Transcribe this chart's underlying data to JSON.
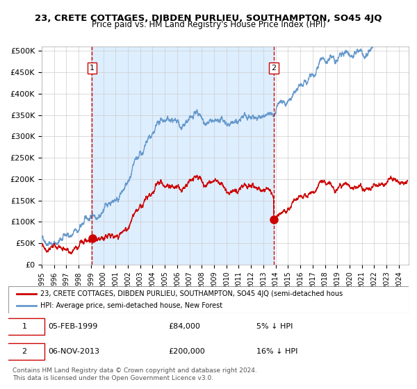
{
  "title": "23, CRETE COTTAGES, DIBDEN PURLIEU, SOUTHAMPTON, SO45 4JQ",
  "subtitle": "Price paid vs. HM Land Registry's House Price Index (HPI)",
  "ylabel": "",
  "sale1_date": 1999.09,
  "sale1_price": 84000,
  "sale1_label": "1",
  "sale1_text": "05-FEB-1999",
  "sale1_pct": "5% ↓ HPI",
  "sale2_date": 2013.84,
  "sale2_price": 200000,
  "sale2_label": "2",
  "sale2_text": "06-NOV-2013",
  "sale2_pct": "16% ↓ HPI",
  "legend1": "23, CRETE COTTAGES, DIBDEN PURLIEU, SOUTHAMPTON, SO45 4JQ (semi-detached hous",
  "legend2": "HPI: Average price, semi-detached house, New Forest",
  "footer1": "Contains HM Land Registry data © Crown copyright and database right 2024.",
  "footer2": "This data is licensed under the Open Government Licence v3.0.",
  "red_color": "#cc0000",
  "blue_color": "#6699cc",
  "bg_shaded": "#ddeeff",
  "vline_color": "#cc0000",
  "yticks": [
    0,
    50000,
    100000,
    150000,
    200000,
    250000,
    300000,
    350000,
    400000,
    450000,
    500000
  ],
  "ylim": [
    0,
    510000
  ],
  "xlim_start": 1995.0,
  "xlim_end": 2024.8
}
